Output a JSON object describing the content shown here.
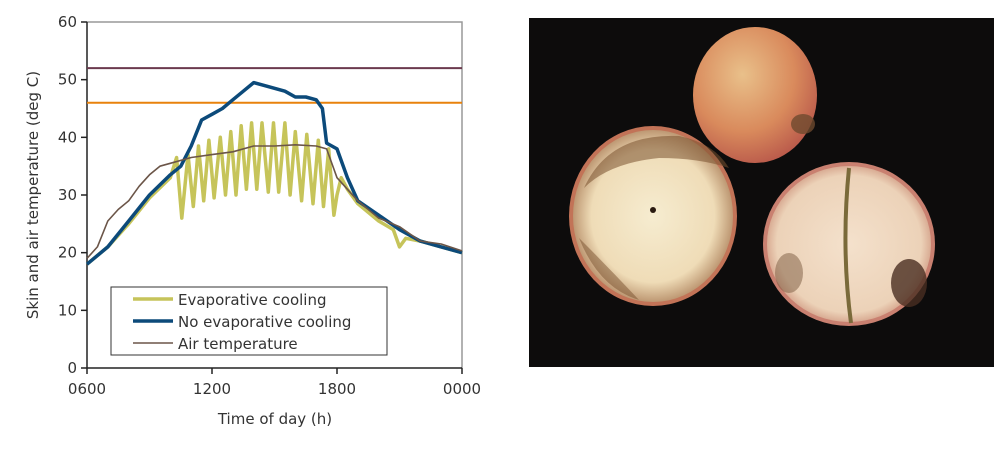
{
  "chart_data": {
    "type": "line",
    "title": "",
    "xlabel": "Time of day (h)",
    "ylabel": "Skin and air temperature (deg C)",
    "xlim": [
      6,
      24
    ],
    "ylim": [
      0,
      60
    ],
    "x_ticks": [
      6,
      12,
      18,
      24
    ],
    "x_tick_labels": [
      "0600",
      "1200",
      "1800",
      "0000"
    ],
    "y_ticks": [
      0,
      10,
      20,
      30,
      40,
      50,
      60
    ],
    "y_tick_labels": [
      "0",
      "10",
      "20",
      "30",
      "40",
      "50",
      "60"
    ],
    "grid": false,
    "legend_position": "bottom-left",
    "reference_lines": [
      {
        "y": 52,
        "color": "#6b3a4e"
      },
      {
        "y": 46,
        "color": "#e8820c"
      }
    ],
    "series": [
      {
        "name": "Evaporative cooling",
        "color": "#c6c45a",
        "width": 3.5,
        "x": [
          6,
          7,
          8,
          9,
          10,
          10.3,
          10.55,
          10.85,
          11.1,
          11.35,
          11.6,
          11.85,
          12.1,
          12.4,
          12.65,
          12.9,
          13.15,
          13.4,
          13.65,
          13.9,
          14.15,
          14.4,
          14.7,
          14.95,
          15.2,
          15.5,
          15.75,
          16.0,
          16.3,
          16.55,
          16.85,
          17.1,
          17.35,
          17.6,
          17.85,
          18.0,
          18.2,
          18.5,
          19,
          20,
          20.7,
          21.0,
          21.3,
          22,
          23,
          24
        ],
        "y": [
          18,
          21,
          25,
          29.5,
          33,
          36.5,
          26,
          37,
          28,
          38.5,
          29,
          39.5,
          29.5,
          40,
          30,
          41,
          30,
          42,
          31,
          42.5,
          31,
          42.5,
          30.5,
          42.5,
          30.5,
          42.5,
          30,
          41,
          29,
          40.5,
          28.5,
          39.5,
          28,
          38,
          26.5,
          30,
          33,
          31,
          28.5,
          25.5,
          24,
          21,
          22.5,
          22,
          21,
          20
        ]
      },
      {
        "name": "No evaporative cooling",
        "color": "#0c4a7a",
        "width": 3.5,
        "x": [
          6,
          7,
          8,
          9,
          10,
          10.5,
          11,
          11.5,
          12,
          12.5,
          13,
          13.5,
          14,
          14.5,
          15,
          15.5,
          16,
          16.5,
          17,
          17.3,
          17.5,
          18,
          18.5,
          19,
          20,
          21,
          22,
          23,
          24
        ],
        "y": [
          18,
          21,
          25.5,
          30,
          33.5,
          35,
          38.5,
          43,
          44,
          45,
          46.5,
          48,
          49.5,
          49,
          48.5,
          48,
          47,
          47,
          46.5,
          45,
          39,
          38,
          33,
          29,
          26.5,
          24,
          22,
          21,
          20
        ]
      },
      {
        "name": "Air temperature",
        "color": "#6b5548",
        "width": 1.6,
        "x": [
          6,
          6.5,
          7,
          7.5,
          8,
          8.5,
          9,
          9.5,
          10,
          11,
          12,
          13,
          14,
          15,
          16,
          17,
          17.5,
          18,
          19,
          20,
          21,
          22,
          23,
          24
        ],
        "y": [
          19,
          21,
          25.5,
          27.5,
          29,
          31.5,
          33.5,
          35,
          35.5,
          36.5,
          37,
          37.5,
          38.5,
          38.5,
          38.7,
          38.5,
          38,
          33,
          29,
          26,
          24.5,
          22,
          21.5,
          20.3
        ]
      }
    ]
  }
}
